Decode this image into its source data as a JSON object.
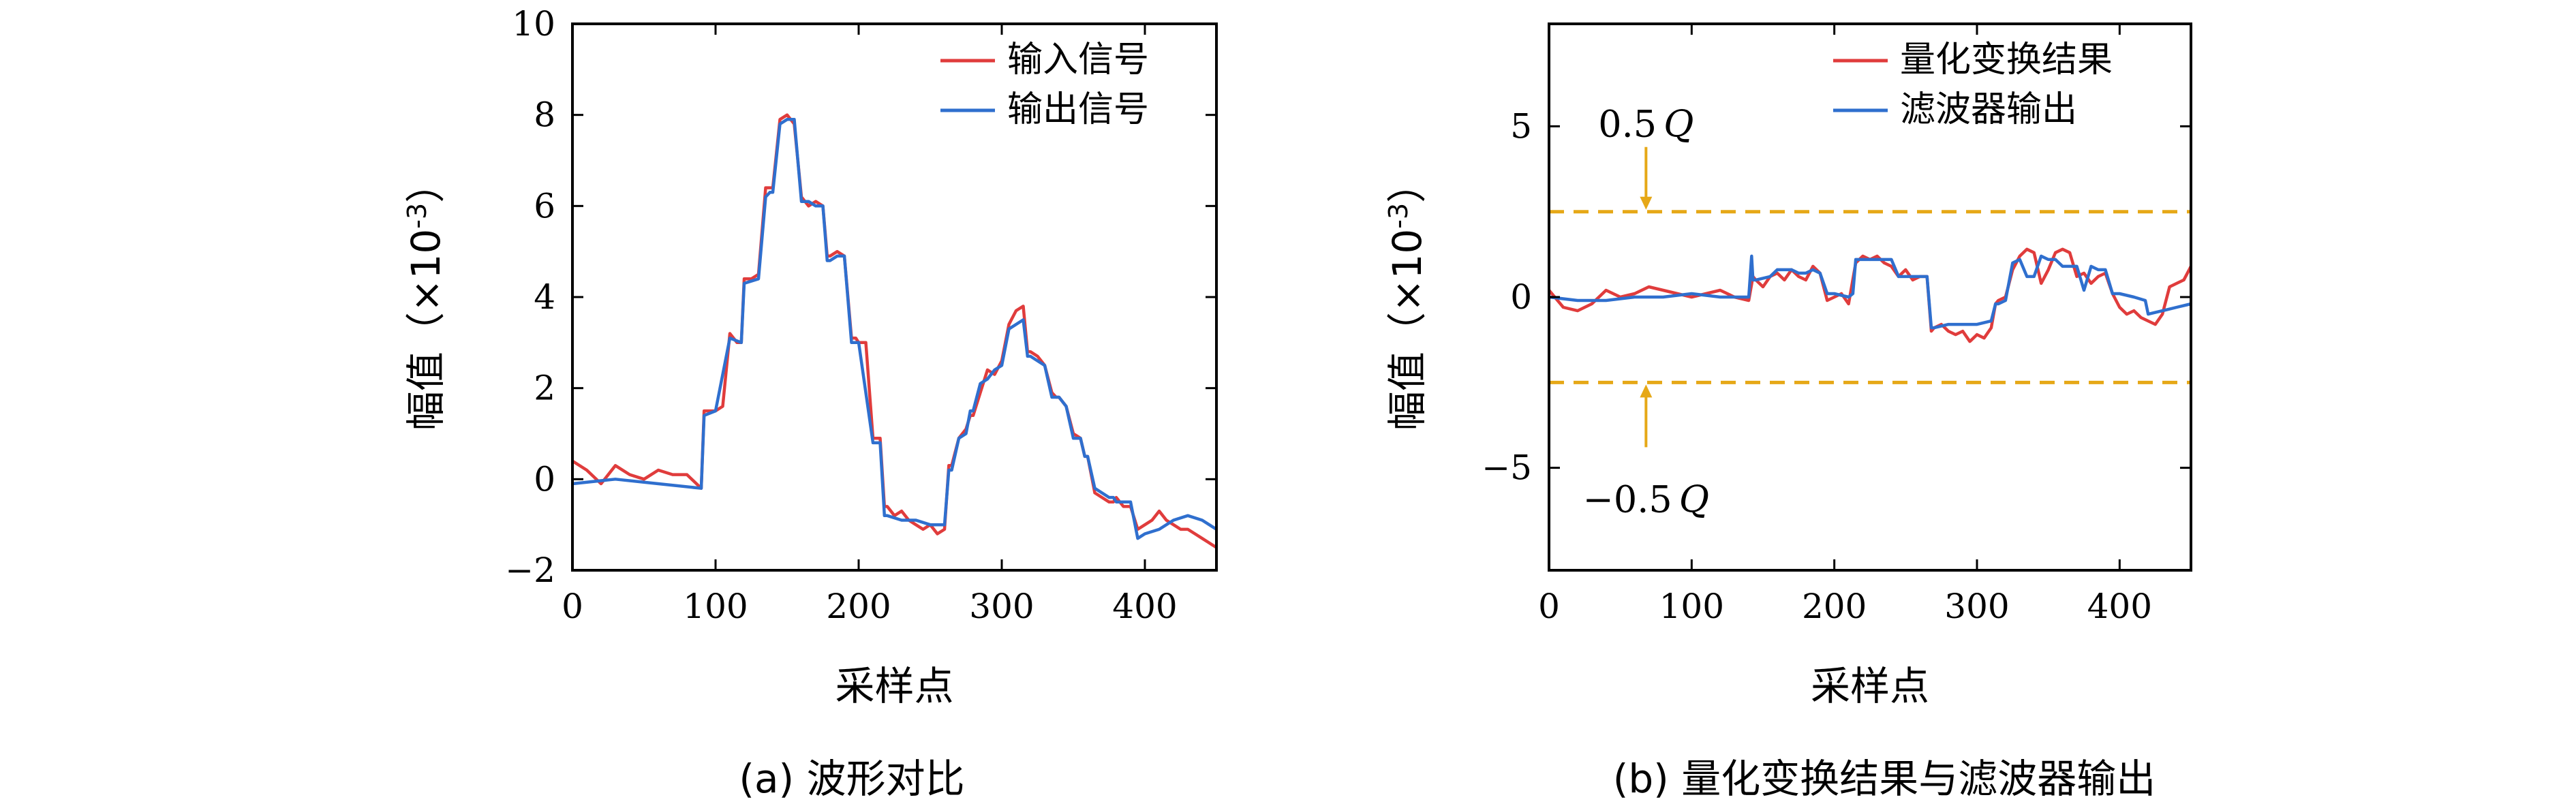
{
  "figure": {
    "caption_a": "(a) 波形对比",
    "caption_b": "(b) 量化变换结果与滤波器输出"
  },
  "colors": {
    "red": "#e03c3c",
    "blue": "#2f6fce",
    "threshold": "#e6a817",
    "axis": "#000000"
  },
  "chart_data": [
    {
      "type": "line",
      "xlabel": "采样点",
      "ylabel": "幅值（×10-3）",
      "ylabel_main": "幅值（×10",
      "ylabel_exp": "-3",
      "ylabel_close": "）",
      "xlim": [
        0,
        450
      ],
      "ylim": [
        -2,
        10
      ],
      "xticks": [
        0,
        100,
        200,
        300,
        400
      ],
      "yticks": [
        -2,
        0,
        2,
        4,
        6,
        8,
        10
      ],
      "grid": false,
      "legend_position": "top-right",
      "series": [
        {
          "name": "输入信号",
          "color": "#e03c3c",
          "x": [
            0,
            10,
            20,
            30,
            40,
            50,
            60,
            70,
            80,
            90,
            92,
            100,
            105,
            110,
            115,
            118,
            120,
            125,
            130,
            135,
            138,
            140,
            145,
            150,
            155,
            160,
            165,
            170,
            175,
            178,
            180,
            185,
            190,
            195,
            198,
            200,
            205,
            210,
            215,
            218,
            220,
            225,
            230,
            235,
            240,
            245,
            250,
            255,
            260,
            263,
            265,
            270,
            275,
            278,
            280,
            285,
            290,
            295,
            300,
            305,
            310,
            315,
            318,
            320,
            325,
            330,
            335,
            338,
            340,
            345,
            350,
            355,
            358,
            360,
            365,
            370,
            375,
            378,
            380,
            385,
            390,
            395,
            400,
            405,
            410,
            415,
            420,
            425,
            430,
            435,
            440,
            445,
            450
          ],
          "y": [
            0.4,
            0.2,
            -0.1,
            0.3,
            0.1,
            0.0,
            0.2,
            0.1,
            0.1,
            -0.2,
            1.5,
            1.5,
            1.6,
            3.2,
            3.0,
            3.0,
            4.4,
            4.4,
            4.5,
            6.4,
            6.4,
            6.4,
            7.9,
            8.0,
            7.8,
            6.2,
            6.0,
            6.1,
            6.0,
            4.9,
            4.9,
            5.0,
            4.9,
            3.1,
            3.1,
            3.0,
            3.0,
            0.9,
            0.9,
            -0.6,
            -0.6,
            -0.8,
            -0.7,
            -0.9,
            -1.0,
            -1.1,
            -1.0,
            -1.2,
            -1.1,
            0.3,
            0.3,
            0.9,
            1.1,
            1.4,
            1.4,
            1.9,
            2.4,
            2.3,
            2.6,
            3.4,
            3.7,
            3.8,
            2.8,
            2.8,
            2.7,
            2.5,
            1.9,
            1.8,
            1.8,
            1.6,
            1.0,
            0.9,
            0.5,
            0.5,
            -0.3,
            -0.4,
            -0.5,
            -0.5,
            -0.4,
            -0.6,
            -0.6,
            -1.1,
            -1.0,
            -0.9,
            -0.7,
            -0.9,
            -1.0,
            -1.1,
            -1.1,
            -1.2,
            -1.3,
            -1.4,
            -1.5
          ]
        },
        {
          "name": "输出信号",
          "color": "#2f6fce",
          "x": [
            0,
            30,
            60,
            90,
            92,
            100,
            110,
            118,
            120,
            130,
            135,
            138,
            140,
            145,
            150,
            155,
            160,
            165,
            170,
            175,
            178,
            180,
            185,
            190,
            195,
            198,
            200,
            210,
            215,
            218,
            220,
            230,
            240,
            250,
            260,
            263,
            265,
            270,
            275,
            278,
            280,
            285,
            290,
            295,
            300,
            305,
            310,
            315,
            318,
            320,
            325,
            330,
            335,
            338,
            340,
            345,
            350,
            355,
            358,
            360,
            365,
            370,
            375,
            378,
            380,
            385,
            390,
            395,
            400,
            410,
            420,
            430,
            440,
            450
          ],
          "y": [
            -0.1,
            0.0,
            -0.1,
            -0.2,
            1.4,
            1.5,
            3.1,
            3.0,
            4.3,
            4.4,
            6.2,
            6.3,
            6.3,
            7.8,
            7.9,
            7.9,
            6.1,
            6.1,
            6.0,
            6.0,
            4.8,
            4.8,
            4.9,
            4.9,
            3.0,
            3.0,
            3.0,
            0.8,
            0.8,
            -0.8,
            -0.8,
            -0.9,
            -0.9,
            -1.0,
            -1.0,
            0.2,
            0.2,
            0.9,
            1.0,
            1.5,
            1.5,
            2.1,
            2.2,
            2.4,
            2.5,
            3.3,
            3.4,
            3.5,
            2.7,
            2.7,
            2.6,
            2.5,
            1.8,
            1.8,
            1.8,
            1.6,
            0.9,
            0.9,
            0.5,
            0.5,
            -0.2,
            -0.3,
            -0.4,
            -0.4,
            -0.5,
            -0.5,
            -0.5,
            -1.3,
            -1.2,
            -1.1,
            -0.9,
            -0.8,
            -0.9,
            -1.1
          ]
        }
      ]
    },
    {
      "type": "line",
      "xlabel": "采样点",
      "ylabel": "幅值（×10-3）",
      "ylabel_main": "幅值（×10",
      "ylabel_exp": "-3",
      "ylabel_close": "）",
      "xlim": [
        0,
        450
      ],
      "ylim": [
        -8,
        8
      ],
      "xticks": [
        0,
        100,
        200,
        300,
        400
      ],
      "yticks": [
        -5,
        0,
        5
      ],
      "grid": false,
      "legend_position": "top-right",
      "thresholds": [
        2.5,
        -2.5
      ],
      "annotations": [
        {
          "text": "0.5Q",
          "num": "0.5",
          "sym": "Q",
          "arrow_to": 2.5
        },
        {
          "text": "−0.5Q",
          "num": "−0.5",
          "sym": "Q",
          "arrow_to": -2.5
        }
      ],
      "series": [
        {
          "name": "量化变换结果",
          "color": "#e03c3c",
          "x": [
            0,
            10,
            20,
            30,
            40,
            50,
            60,
            70,
            80,
            90,
            100,
            110,
            120,
            130,
            140,
            143,
            145,
            150,
            155,
            160,
            165,
            170,
            175,
            180,
            185,
            190,
            195,
            200,
            205,
            210,
            215,
            220,
            225,
            230,
            235,
            240,
            245,
            250,
            255,
            260,
            265,
            268,
            270,
            275,
            280,
            285,
            290,
            295,
            300,
            305,
            310,
            313,
            315,
            320,
            325,
            330,
            335,
            340,
            345,
            350,
            355,
            360,
            365,
            370,
            375,
            380,
            385,
            390,
            395,
            400,
            405,
            410,
            415,
            420,
            425,
            430,
            435,
            440,
            445,
            450
          ],
          "y": [
            0.2,
            -0.3,
            -0.4,
            -0.2,
            0.2,
            0.0,
            0.1,
            0.3,
            0.2,
            0.1,
            0.0,
            0.1,
            0.2,
            0.0,
            -0.1,
            0.6,
            0.5,
            0.3,
            0.6,
            0.7,
            0.5,
            0.8,
            0.6,
            0.5,
            0.9,
            0.7,
            -0.1,
            0.0,
            0.1,
            -0.2,
            1.0,
            1.2,
            1.1,
            1.2,
            1.0,
            0.9,
            0.6,
            0.8,
            0.5,
            0.6,
            0.6,
            -1.0,
            -0.9,
            -0.8,
            -1.0,
            -1.1,
            -1.0,
            -1.3,
            -1.1,
            -1.2,
            -0.9,
            -0.2,
            -0.1,
            0.0,
            0.8,
            1.2,
            1.4,
            1.3,
            0.4,
            0.8,
            1.3,
            1.4,
            1.3,
            0.6,
            0.7,
            0.4,
            0.6,
            0.7,
            0.1,
            -0.3,
            -0.5,
            -0.4,
            -0.6,
            -0.7,
            -0.8,
            -0.5,
            0.3,
            0.4,
            0.5,
            0.9
          ]
        },
        {
          "name": "滤波器输出",
          "color": "#2f6fce",
          "x": [
            0,
            20,
            40,
            60,
            80,
            100,
            120,
            140,
            142,
            143,
            145,
            155,
            160,
            170,
            175,
            180,
            185,
            190,
            195,
            200,
            210,
            213,
            215,
            220,
            230,
            240,
            245,
            250,
            260,
            265,
            268,
            270,
            280,
            290,
            300,
            310,
            313,
            315,
            320,
            325,
            330,
            335,
            340,
            345,
            350,
            355,
            360,
            365,
            370,
            375,
            380,
            385,
            390,
            395,
            400,
            410,
            418,
            420,
            430,
            440,
            450
          ],
          "y": [
            0.0,
            -0.1,
            -0.1,
            0.0,
            0.0,
            0.1,
            0.0,
            0.0,
            1.2,
            0.5,
            0.5,
            0.6,
            0.8,
            0.8,
            0.7,
            0.7,
            0.8,
            0.7,
            0.1,
            0.1,
            0.0,
            0.1,
            1.1,
            1.1,
            1.1,
            1.1,
            0.6,
            0.6,
            0.6,
            0.6,
            -0.9,
            -0.9,
            -0.8,
            -0.8,
            -0.8,
            -0.7,
            -0.2,
            -0.2,
            -0.1,
            1.0,
            1.1,
            0.6,
            0.6,
            1.2,
            1.1,
            1.1,
            0.9,
            0.9,
            0.9,
            0.2,
            0.9,
            0.8,
            0.8,
            0.1,
            0.1,
            0.0,
            -0.1,
            -0.5,
            -0.4,
            -0.3,
            -0.2
          ]
        }
      ]
    }
  ]
}
